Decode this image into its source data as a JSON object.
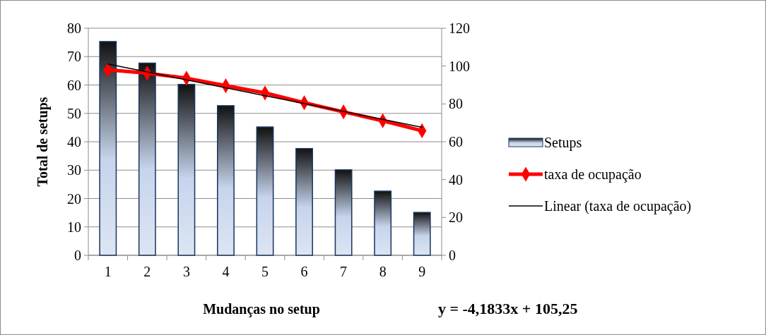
{
  "chart_data": {
    "type": "bar",
    "xlabel": "Mudanças no setup",
    "ylabel": "Total de setups",
    "categories": [
      "1",
      "2",
      "3",
      "4",
      "5",
      "6",
      "7",
      "8",
      "9"
    ],
    "series": [
      {
        "name": "Setups",
        "color": "#17365d",
        "values": [
          75.3,
          67.7,
          60.2,
          52.7,
          45.2,
          37.6,
          30.1,
          22.6,
          15.1
        ]
      },
      {
        "name": "taxa de ocupação",
        "type": "line",
        "axis": "y2",
        "color": "#ff0000",
        "marker": "diamond",
        "values": [
          98,
          96.2,
          93.6,
          89.6,
          85.8,
          80.6,
          75.8,
          71.1,
          65.8
        ]
      },
      {
        "name": "Linear (taxa de ocupação)",
        "type": "line",
        "axis": "y2",
        "color": "#000000",
        "marker": "none",
        "values": [
          101.1,
          96.9,
          92.7,
          88.5,
          84.3,
          80.2,
          76,
          71.8,
          67.6
        ]
      }
    ],
    "ylim": [
      0,
      80
    ],
    "yticks": [
      0,
      10,
      20,
      30,
      40,
      50,
      60,
      70,
      80
    ],
    "y2lim": [
      0,
      120
    ],
    "y2ticks": [
      0,
      20,
      40,
      60,
      80,
      100,
      120
    ],
    "grid": "y",
    "legend": "right",
    "annotations": [
      "y = -4,1833x + 105,25"
    ]
  }
}
